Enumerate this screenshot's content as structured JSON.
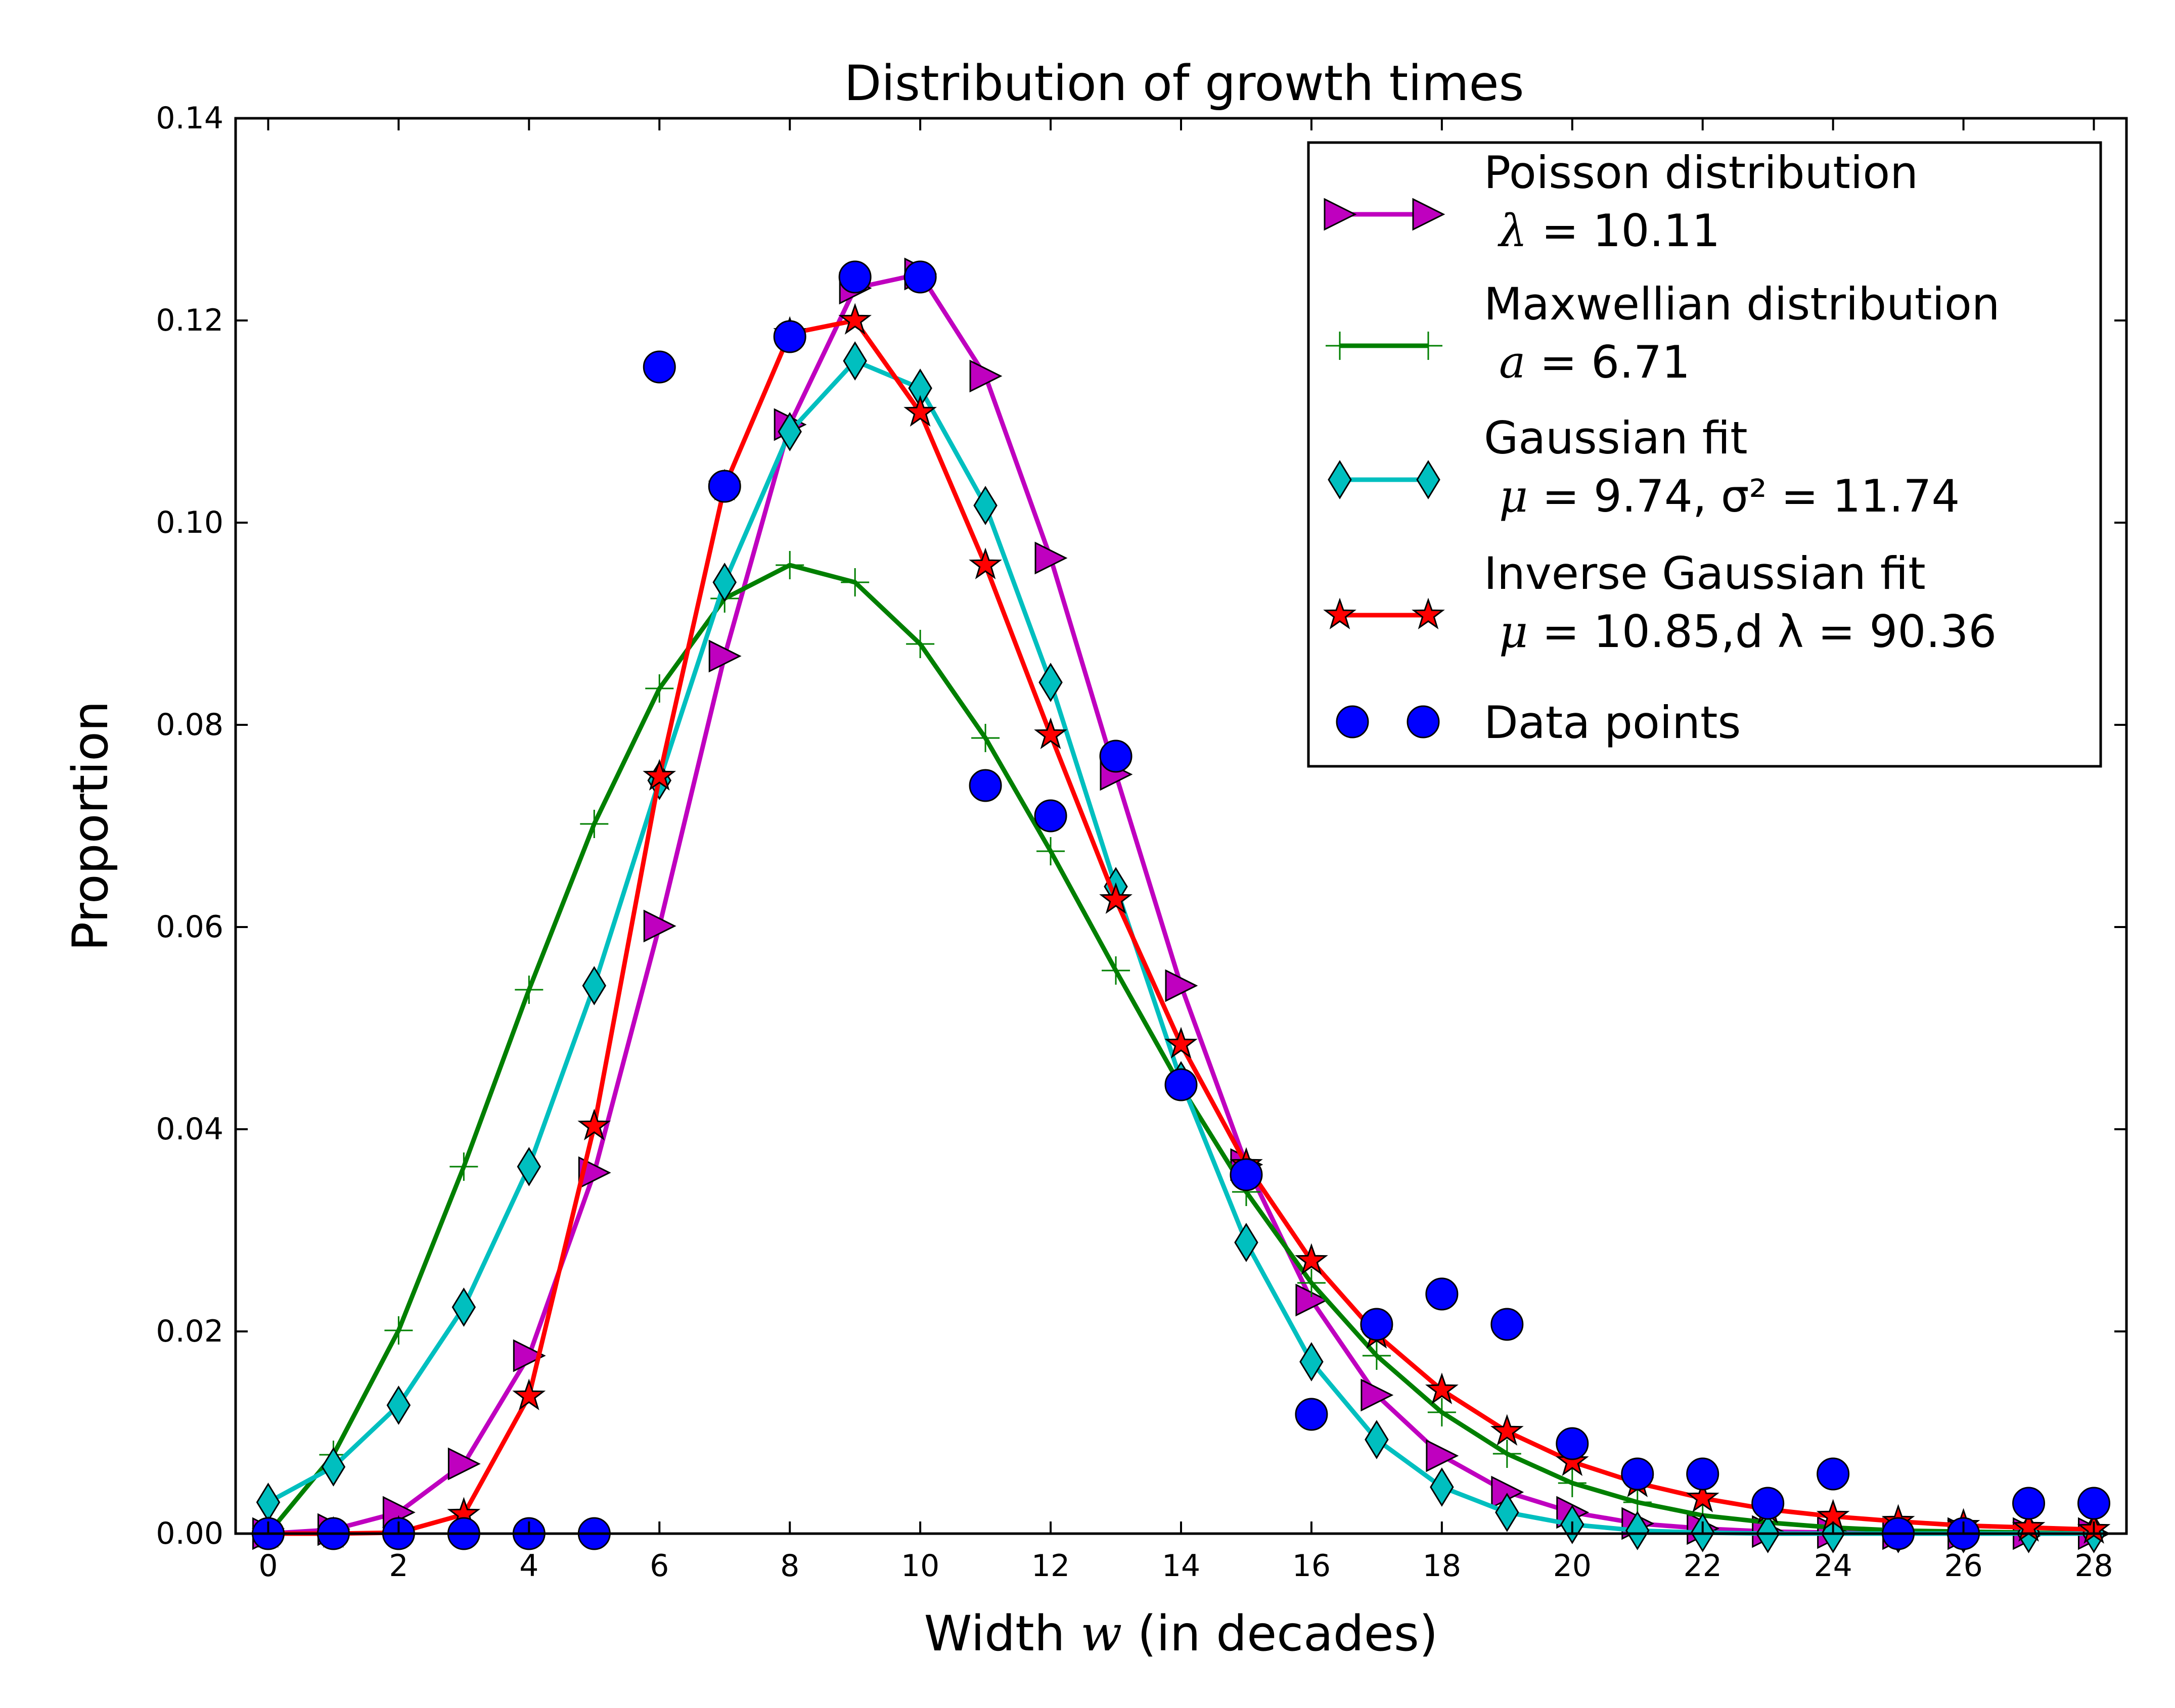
{
  "chart_data": {
    "type": "line",
    "title": "Distribution of growth times",
    "xlabel_pre": "Width ",
    "xlabel_var": "w",
    "xlabel_post": " (in decades)",
    "ylabel": "Proportion",
    "xlim": [
      -0.5,
      28.5
    ],
    "ylim": [
      0,
      0.14
    ],
    "xticks": [
      "0",
      "2",
      "4",
      "6",
      "8",
      "10",
      "12",
      "14",
      "16",
      "18",
      "20",
      "22",
      "24",
      "26",
      "28"
    ],
    "yticks": [
      "0.00",
      "0.02",
      "0.04",
      "0.06",
      "0.08",
      "0.10",
      "0.12",
      "0.14"
    ],
    "x": [
      0,
      1,
      2,
      3,
      4,
      5,
      6,
      7,
      8,
      9,
      10,
      11,
      12,
      13,
      14,
      15,
      16,
      17,
      18,
      19,
      20,
      21,
      22,
      23,
      24,
      25,
      26,
      27,
      28
    ],
    "series": [
      {
        "name": "Poisson distribution",
        "param_var": "λ",
        "param_rest": "= 10.11",
        "color": "#bf00bf",
        "marker": "triangle-right",
        "values": [
          0.0,
          0.0004,
          0.0021,
          0.0069,
          0.0176,
          0.0357,
          0.0601,
          0.0868,
          0.1097,
          0.1232,
          0.1246,
          0.1145,
          0.0965,
          0.0751,
          0.0542,
          0.0365,
          0.0231,
          0.0137,
          0.0077,
          0.0041,
          0.0021,
          0.001,
          0.0005,
          0.0002,
          0.0001,
          0.0,
          0.0,
          0.0,
          0.0
        ]
      },
      {
        "name": "Maxwellian distribution",
        "param_var": "a",
        "param_rest": "= 6.71",
        "color": "#007f00",
        "marker": "plus",
        "values": [
          0.0,
          0.0078,
          0.0201,
          0.0363,
          0.0538,
          0.0702,
          0.0836,
          0.0925,
          0.0958,
          0.0941,
          0.088,
          0.0787,
          0.0675,
          0.0557,
          0.0442,
          0.0338,
          0.0248,
          0.0176,
          0.012,
          0.0079,
          0.005,
          0.0031,
          0.0018,
          0.0011,
          0.0006,
          0.0003,
          0.0002,
          0.0001,
          0.0
        ]
      },
      {
        "name": "Gaussian fit",
        "param_var": "μ",
        "param_rest": "=  9.74, σ² = 11.74",
        "color": "#00bfbf",
        "marker": "diamond",
        "values": [
          0.0031,
          0.0066,
          0.0127,
          0.0224,
          0.0363,
          0.0542,
          0.0745,
          0.0941,
          0.109,
          0.116,
          0.1133,
          0.1017,
          0.0842,
          0.064,
          0.0448,
          0.0288,
          0.017,
          0.0093,
          0.0046,
          0.0021,
          0.0009,
          0.0003,
          0.0001,
          0.0,
          0.0,
          0.0,
          0.0,
          0.0,
          0.0
        ]
      },
      {
        "name": "Inverse Gaussian fit",
        "param_var": "μ",
        "param_rest": "=  10.85,d λ = 90.36",
        "color": "#ff0000",
        "marker": "star",
        "values": [
          0.0,
          0.0,
          0.0001,
          0.0019,
          0.0136,
          0.0403,
          0.0749,
          0.1036,
          0.1187,
          0.12,
          0.1109,
          0.0958,
          0.079,
          0.0627,
          0.0484,
          0.0365,
          0.027,
          0.0197,
          0.0142,
          0.0101,
          0.0071,
          0.005,
          0.0035,
          0.0024,
          0.0017,
          0.0012,
          0.0008,
          0.0006,
          0.0004
        ]
      }
    ],
    "scatter": {
      "name": "Data points",
      "color": "#0000ff",
      "x": [
        0,
        1,
        2,
        3,
        4,
        5,
        6,
        7,
        8,
        9,
        10,
        11,
        12,
        13,
        14,
        15,
        16,
        17,
        18,
        19,
        20,
        21,
        22,
        23,
        24,
        25,
        26,
        27,
        28
      ],
      "values": [
        0.0,
        0.0,
        0.0,
        0.0,
        0.0,
        0.0,
        0.1154,
        0.1036,
        0.1184,
        0.1243,
        0.1243,
        0.074,
        0.071,
        0.0769,
        0.0444,
        0.0355,
        0.0118,
        0.0207,
        0.0237,
        0.0207,
        0.0089,
        0.0059,
        0.0059,
        0.003,
        0.0059,
        0.0,
        0.0,
        0.003,
        0.003
      ]
    },
    "legend_position": "top-right"
  }
}
